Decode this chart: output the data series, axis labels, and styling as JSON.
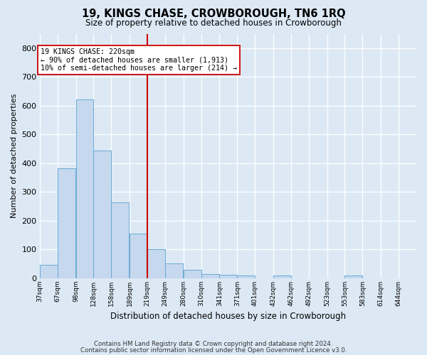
{
  "title": "19, KINGS CHASE, CROWBOROUGH, TN6 1RQ",
  "subtitle": "Size of property relative to detached houses in Crowborough",
  "xlabel": "Distribution of detached houses by size in Crowborough",
  "ylabel": "Number of detached properties",
  "footnote1": "Contains HM Land Registry data © Crown copyright and database right 2024.",
  "footnote2": "Contains public sector information licensed under the Open Government Licence v3.0.",
  "bar_color": "#c5d8ee",
  "bar_edge_color": "#6aaad4",
  "bg_color": "#dce9f5",
  "vline_color": "#cc0000",
  "annotation_text": "19 KINGS CHASE: 220sqm\n← 90% of detached houses are smaller (1,913)\n10% of semi-detached houses are larger (214) →",
  "bins": [
    37,
    67,
    98,
    128,
    158,
    189,
    219,
    249,
    280,
    310,
    341,
    371,
    401,
    432,
    462,
    492,
    523,
    553,
    583,
    614,
    644
  ],
  "counts": [
    46,
    383,
    622,
    443,
    265,
    155,
    100,
    52,
    30,
    16,
    12,
    10,
    0,
    9,
    0,
    0,
    0,
    10,
    0,
    0,
    0
  ],
  "vline_x": 219,
  "ylim": [
    0,
    850
  ],
  "yticks": [
    0,
    100,
    200,
    300,
    400,
    500,
    600,
    700,
    800
  ],
  "figsize": [
    6.0,
    5.0
  ],
  "dpi": 100
}
